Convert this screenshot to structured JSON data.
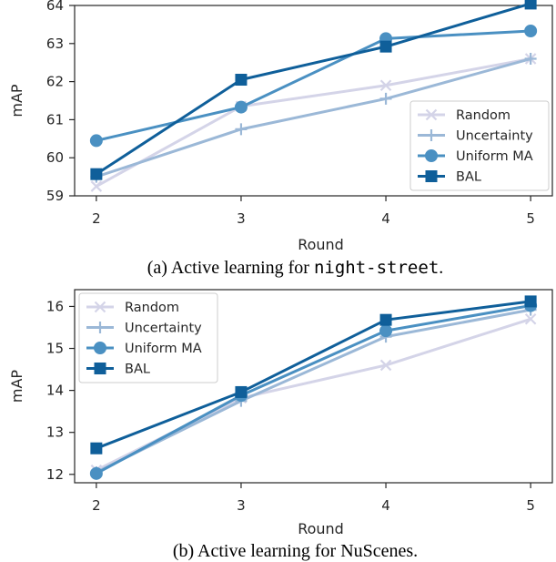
{
  "chart_data": [
    {
      "type": "line",
      "x": [
        2,
        3,
        4,
        5
      ],
      "xlabel": "Round",
      "ylabel": "mAP",
      "ylim": [
        59,
        64
      ],
      "yticks": [
        59,
        60,
        61,
        62,
        63,
        64
      ],
      "xticks": [
        2,
        3,
        4,
        5
      ],
      "legend_position": "lower-right",
      "caption_prefix": "(a) Active learning for ",
      "caption_code": "night-street",
      "caption_suffix": ".",
      "series": [
        {
          "name": "Random",
          "values": [
            59.25,
            61.35,
            61.9,
            62.6
          ],
          "color": "#d4d4e8",
          "marker": "x"
        },
        {
          "name": "Uncertainty",
          "values": [
            59.5,
            60.75,
            61.55,
            62.6
          ],
          "color": "#9bb8d7",
          "marker": "plus"
        },
        {
          "name": "Uniform MA",
          "values": [
            60.45,
            61.33,
            63.13,
            63.33
          ],
          "color": "#4a90c2",
          "marker": "circle"
        },
        {
          "name": "BAL",
          "values": [
            59.57,
            62.05,
            62.92,
            64.05
          ],
          "color": "#0f5f9a",
          "marker": "square"
        }
      ]
    },
    {
      "type": "line",
      "x": [
        2,
        3,
        4,
        5
      ],
      "xlabel": "Round",
      "ylabel": "mAP",
      "ylim": [
        11.8,
        16.4
      ],
      "yticks": [
        12,
        13,
        14,
        15,
        16
      ],
      "xticks": [
        2,
        3,
        4,
        5
      ],
      "legend_position": "upper-left",
      "caption_prefix": "(b) Active learning for NuScenes.",
      "caption_code": "",
      "caption_suffix": "",
      "series": [
        {
          "name": "Random",
          "values": [
            12.1,
            13.82,
            14.6,
            15.7
          ],
          "color": "#d4d4e8",
          "marker": "x"
        },
        {
          "name": "Uncertainty",
          "values": [
            12.05,
            13.75,
            15.28,
            15.92
          ],
          "color": "#9bb8d7",
          "marker": "plus"
        },
        {
          "name": "Uniform MA",
          "values": [
            12.02,
            13.88,
            15.42,
            16.02
          ],
          "color": "#4a90c2",
          "marker": "circle"
        },
        {
          "name": "BAL",
          "values": [
            12.62,
            13.96,
            15.68,
            16.12
          ],
          "color": "#0f5f9a",
          "marker": "square"
        }
      ]
    }
  ]
}
